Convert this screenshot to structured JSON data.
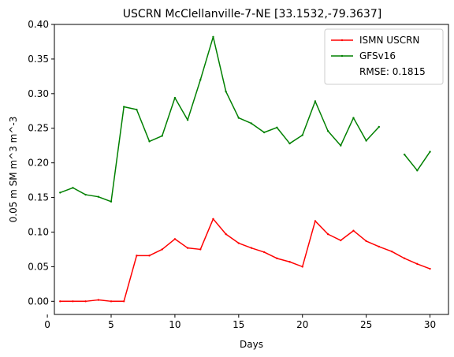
{
  "chart_data": {
    "type": "line",
    "title": "USCRN McClellanville-7-NE [33.1532,-79.3637]",
    "xlabel": "Days",
    "ylabel": "0.05 m SM m^3 m^-3",
    "xlim": [
      0.55,
      31.45
    ],
    "ylim": [
      -0.019,
      0.4
    ],
    "xticks": [
      0,
      5,
      10,
      15,
      20,
      25,
      30
    ],
    "yticks": [
      0.0,
      0.05,
      0.1,
      0.15,
      0.2,
      0.25,
      0.3,
      0.35,
      0.4
    ],
    "ytick_labels": [
      "0.00",
      "0.05",
      "0.10",
      "0.15",
      "0.20",
      "0.25",
      "0.30",
      "0.35",
      "0.40"
    ],
    "grid": false,
    "legend_position": "top-right",
    "x": [
      1,
      2,
      3,
      4,
      5,
      6,
      7,
      8,
      9,
      10,
      11,
      12,
      13,
      14,
      15,
      16,
      17,
      18,
      19,
      20,
      21,
      22,
      23,
      24,
      25,
      26,
      27,
      28,
      29,
      30
    ],
    "series": [
      {
        "name": "ISMN USCRN",
        "color": "#ff0000",
        "values": [
          0.0,
          0.0,
          0.0,
          0.002,
          0.0,
          0.0,
          0.066,
          0.066,
          0.075,
          0.09,
          0.077,
          0.075,
          0.119,
          0.097,
          0.084,
          0.077,
          0.071,
          0.062,
          0.057,
          0.05,
          0.116,
          0.097,
          0.088,
          0.102,
          0.087,
          0.079,
          0.072,
          0.062,
          0.054,
          0.047
        ]
      },
      {
        "name": "GFSv16",
        "color": "#008000",
        "values": [
          0.157,
          0.164,
          0.154,
          0.151,
          0.144,
          0.281,
          0.277,
          0.231,
          0.239,
          0.294,
          0.262,
          0.32,
          0.382,
          0.303,
          0.265,
          0.257,
          0.244,
          0.251,
          0.228,
          0.24,
          0.289,
          0.246,
          0.225,
          0.265,
          0.232,
          0.252,
          null,
          0.212,
          0.189,
          0.216
        ]
      }
    ],
    "annotation": "RMSE: 0.1815"
  }
}
